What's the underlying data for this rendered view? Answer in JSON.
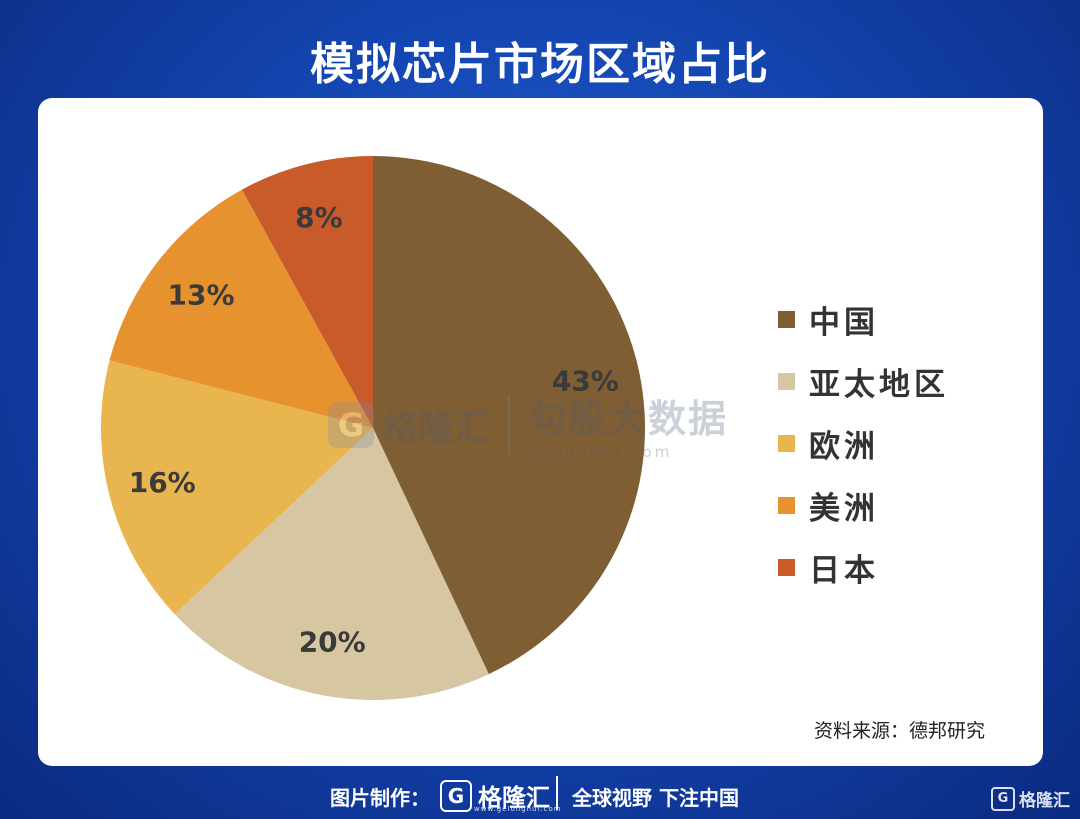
{
  "header": {
    "title": "模拟芯片市场区域占比"
  },
  "chart_data": {
    "type": "pie",
    "title": "",
    "labels": [
      "中国",
      "亚太地区",
      "欧洲",
      "美洲",
      "日本"
    ],
    "values": [
      43,
      20,
      16,
      13,
      8
    ],
    "value_labels": [
      "43%",
      "20%",
      "16%",
      "13%",
      "8%"
    ],
    "colors": [
      "#7f5e34",
      "#d6c6a2",
      "#e9b54f",
      "#e6932f",
      "#c95b2b"
    ],
    "start_angle": "12 o'clock",
    "direction": "clockwise",
    "legend_position": "right"
  },
  "source": "资料来源：德邦研究",
  "watermark": {
    "logo_letter": "G",
    "brand": "格隆汇",
    "data_name": "勾股大数据",
    "url": "gogudata.com"
  },
  "footer": {
    "credit": "图片制作：",
    "logo_letter": "G",
    "logo_text": "格隆汇",
    "logo_url": "www.gelonghui.com",
    "slogan": "全球视野 下注中国",
    "corner_text": "格隆汇"
  }
}
